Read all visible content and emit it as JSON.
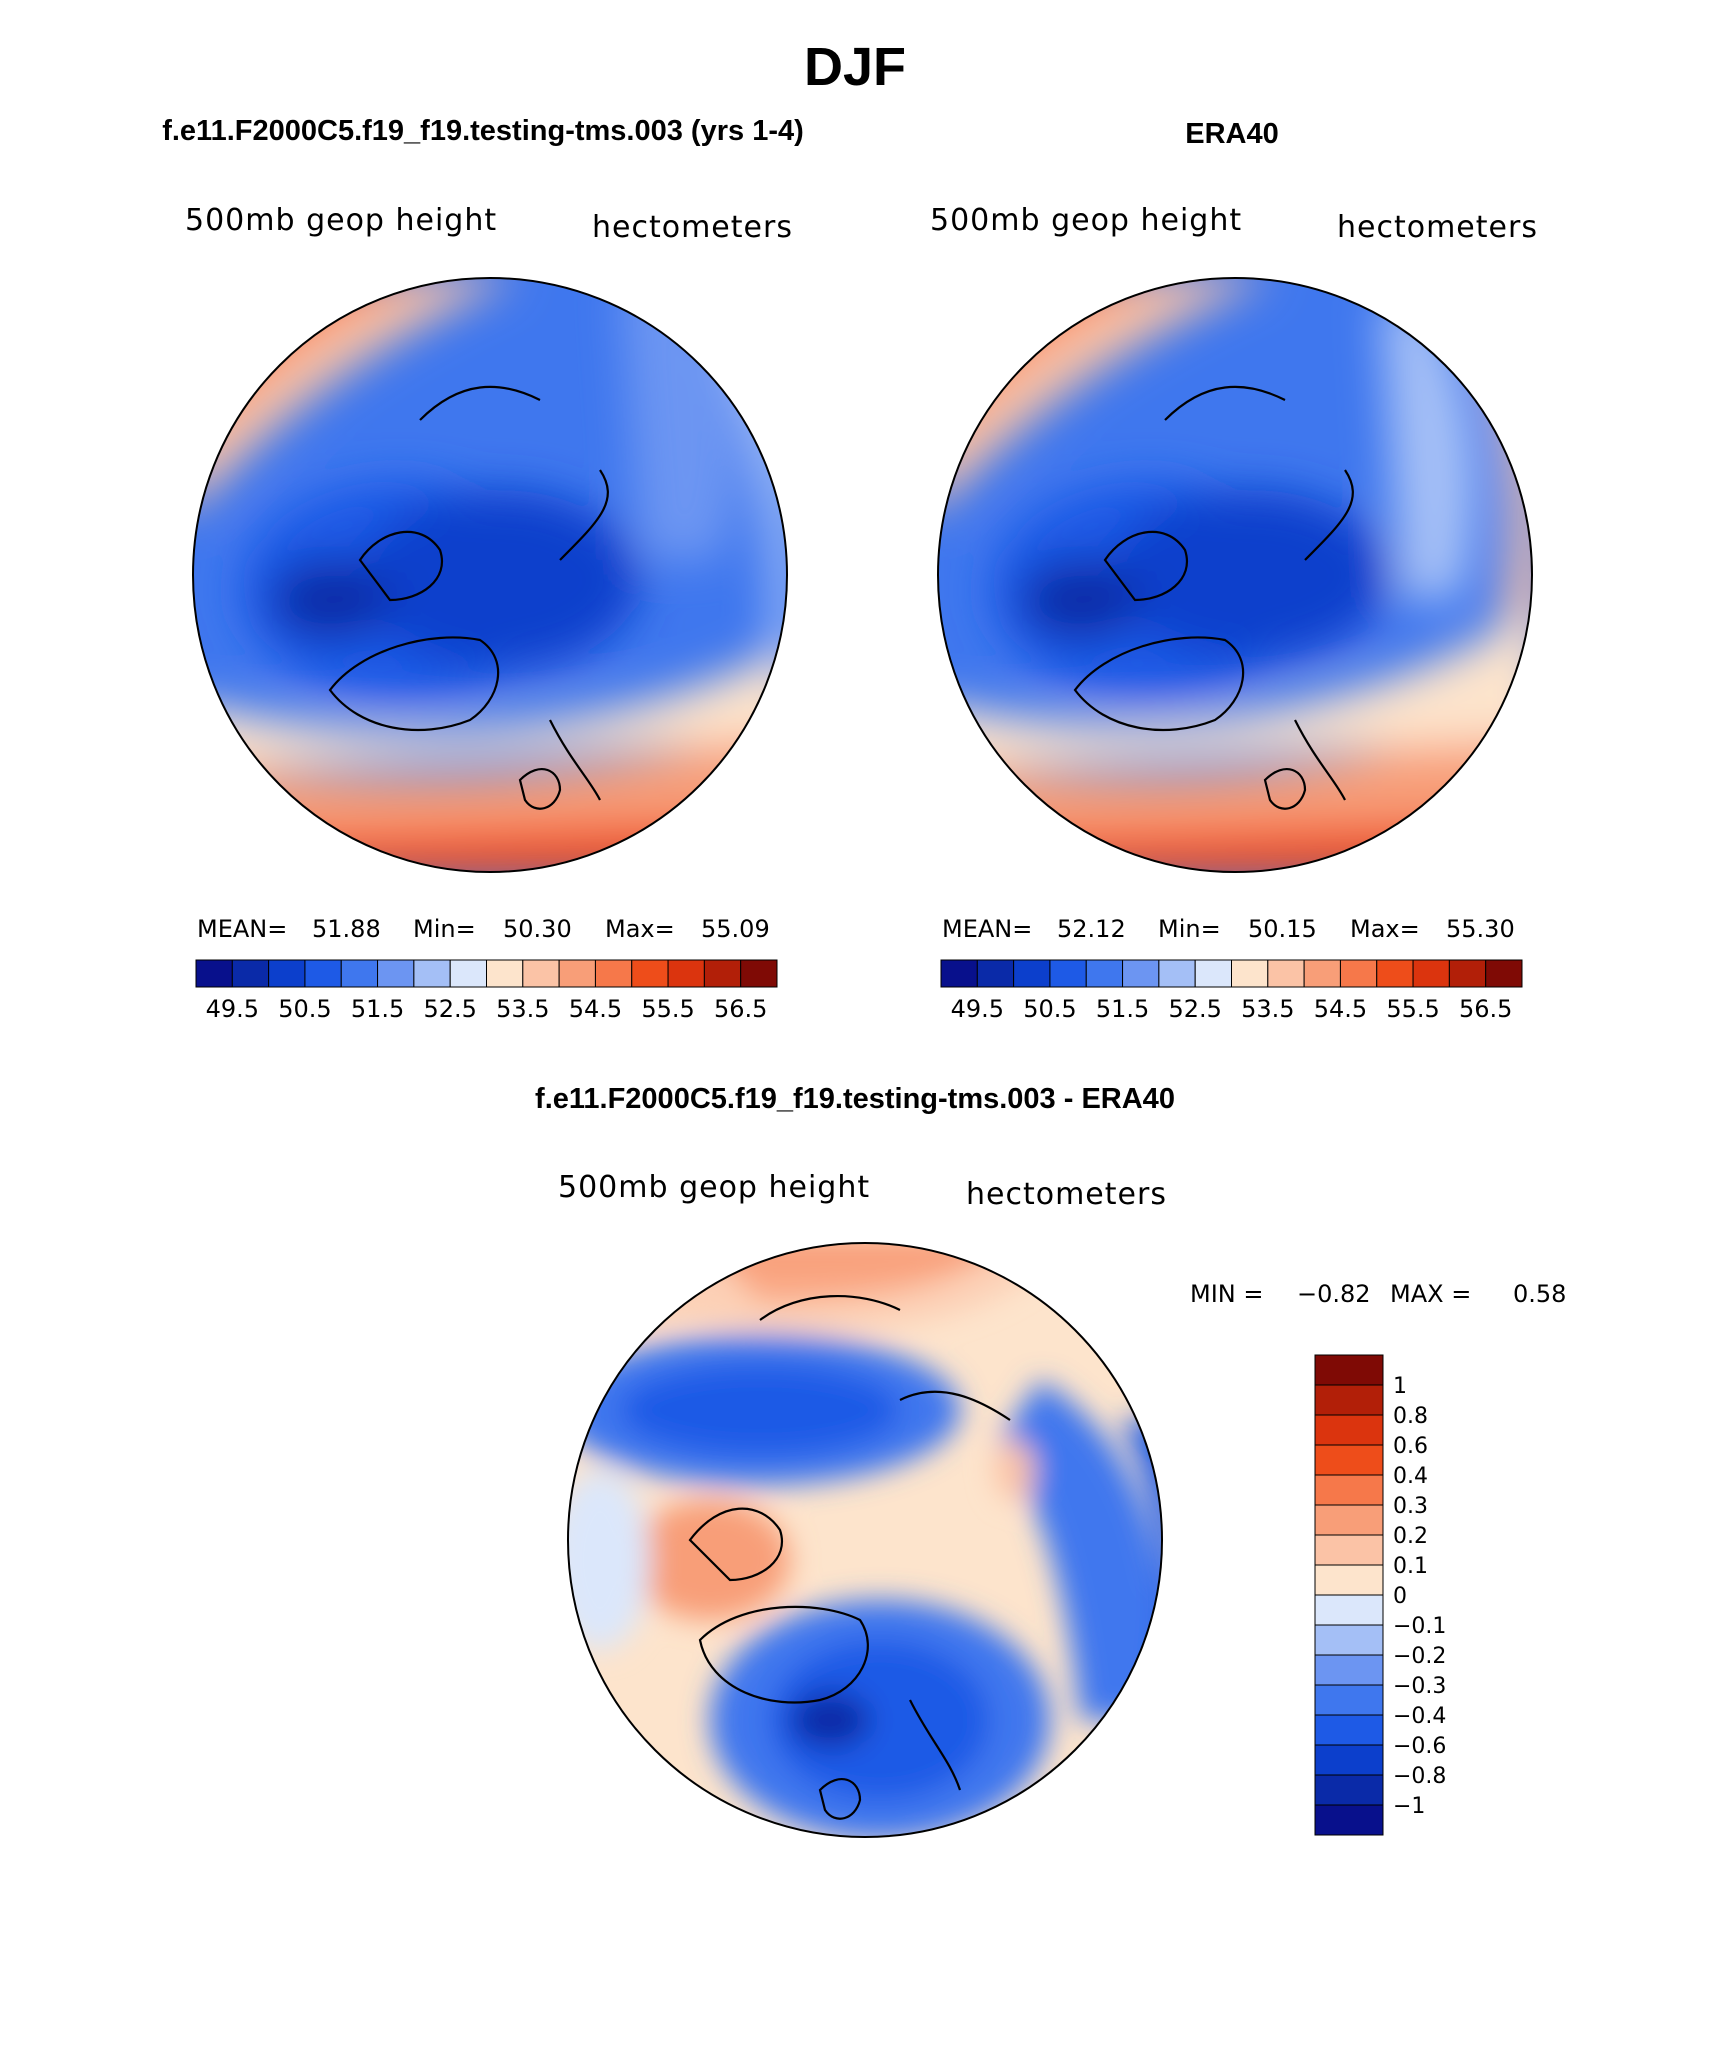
{
  "page_title": "DJF",
  "chart_data": [
    {
      "type": "heatmap",
      "projection": "north-polar-stereographic",
      "title": "f.e11.F2000C5.f19_f19.testing-tms.003 (yrs 1-4)",
      "left_label": "500mb geop height",
      "right_label": "hectometers",
      "stats": {
        "mean_label": "MEAN=",
        "mean": "51.88",
        "min_label": "Min=",
        "min": "50.30",
        "max_label": "Max=",
        "max": "55.09"
      },
      "levels": [
        49.5,
        50,
        50.5,
        51,
        51.5,
        52,
        52.5,
        53,
        53.5,
        54,
        54.5,
        55,
        55.5,
        56,
        56.5
      ],
      "tick_labels": [
        "49.5",
        "50.5",
        "51.5",
        "52.5",
        "53.5",
        "54.5",
        "55.5",
        "56.5"
      ]
    },
    {
      "type": "heatmap",
      "projection": "north-polar-stereographic",
      "title": "ERA40",
      "left_label": "500mb geop height",
      "right_label": "hectometers",
      "stats": {
        "mean_label": "MEAN=",
        "mean": "52.12",
        "min_label": "Min=",
        "min": "50.15",
        "max_label": "Max=",
        "max": "55.30"
      },
      "levels": [
        49.5,
        50,
        50.5,
        51,
        51.5,
        52,
        52.5,
        53,
        53.5,
        54,
        54.5,
        55,
        55.5,
        56,
        56.5
      ],
      "tick_labels": [
        "49.5",
        "50.5",
        "51.5",
        "52.5",
        "53.5",
        "54.5",
        "55.5",
        "56.5"
      ]
    },
    {
      "type": "heatmap",
      "projection": "north-polar-stereographic",
      "title": "f.e11.F2000C5.f19_f19.testing-tms.003 - ERA40",
      "left_label": "500mb geop height",
      "right_label": "hectometers",
      "stats": {
        "min_label": "MIN =",
        "min": "−0.82",
        "max_label": "MAX =",
        "max": "0.58"
      },
      "levels": [
        -1,
        -0.8,
        -0.6,
        -0.4,
        -0.3,
        -0.2,
        -0.1,
        0,
        0.1,
        0.2,
        0.3,
        0.4,
        0.6,
        0.8,
        1
      ],
      "tick_labels": [
        "1",
        "0.8",
        "0.6",
        "0.4",
        "0.3",
        "0.2",
        "0.1",
        "0",
        "−0.1",
        "−0.2",
        "−0.3",
        "−0.4",
        "−0.6",
        "−0.8",
        "−1"
      ]
    }
  ],
  "palette": [
    "#08108c",
    "#0a2aa8",
    "#0c3fcc",
    "#1e5ae6",
    "#3f77ee",
    "#6c95f2",
    "#a4bff6",
    "#dbe7fb",
    "#fde4cc",
    "#fbc3a6",
    "#f89e78",
    "#f6784a",
    "#ee4d1a",
    "#db340e",
    "#b21f08",
    "#7f0a05"
  ]
}
